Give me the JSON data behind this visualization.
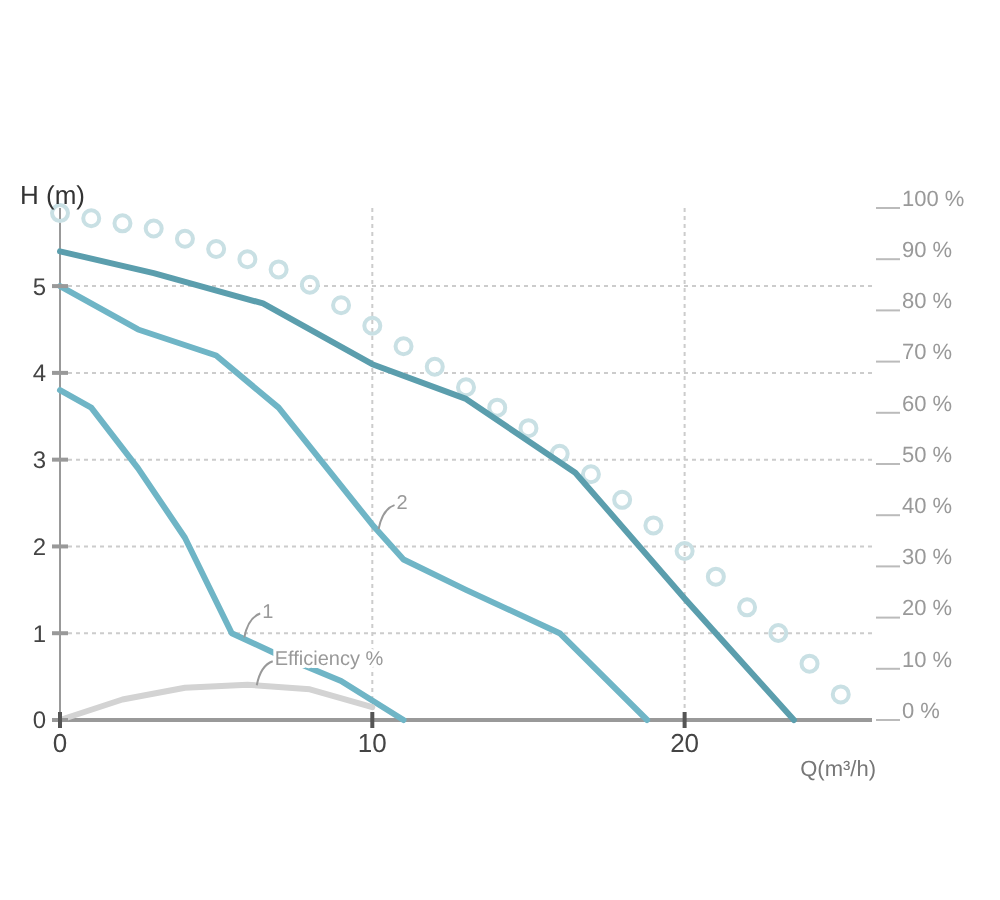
{
  "chart_data": {
    "type": "line",
    "ylabel": "H (m)",
    "xlabel": "Q(m³/h)",
    "xlim": [
      0,
      26
    ],
    "xticks": [
      0,
      10,
      20
    ],
    "ylim": [
      0,
      5.9
    ],
    "yticks": [
      0,
      1,
      2,
      3,
      4,
      5
    ],
    "y2lim": [
      0,
      100
    ],
    "y2ticks": [
      {
        "value": 0,
        "label": "0 %"
      },
      {
        "value": 10,
        "label": "10 %"
      },
      {
        "value": 20,
        "label": "20 %"
      },
      {
        "value": 30,
        "label": "30 %"
      },
      {
        "value": 40,
        "label": "40 %"
      },
      {
        "value": 50,
        "label": "50 %"
      },
      {
        "value": 60,
        "label": "60 %"
      },
      {
        "value": 70,
        "label": "70 %"
      },
      {
        "value": 80,
        "label": "80 %"
      },
      {
        "value": 90,
        "label": "90 %"
      },
      {
        "value": 100,
        "label": "100 %"
      }
    ],
    "grid": true,
    "series": [
      {
        "type": "scatter",
        "axis": "y2",
        "marker": "circle",
        "color": "#c9e0e4",
        "x": [
          0,
          1,
          2,
          3,
          4,
          5,
          6,
          7,
          8,
          9,
          10,
          11,
          12,
          13,
          14,
          15,
          16,
          17,
          18,
          19,
          20,
          21,
          22,
          23,
          24,
          25
        ],
        "values": [
          99,
          98,
          97,
          96,
          94,
          92,
          90,
          88,
          85,
          81,
          77,
          73,
          69,
          65,
          61,
          57,
          52,
          48,
          43,
          38,
          33,
          28,
          22,
          17,
          11,
          5
        ]
      },
      {
        "color": "#5b9ead",
        "x": [
          0,
          3,
          6.5,
          10,
          13,
          16.5,
          20,
          23.5
        ],
        "values": [
          5.4,
          5.15,
          4.8,
          4.1,
          3.7,
          2.85,
          1.4,
          0
        ]
      },
      {
        "color": "#6fb5c6",
        "x": [
          0,
          2.5,
          5,
          7,
          10,
          11,
          13,
          16,
          18.8
        ],
        "values": [
          5.0,
          4.5,
          4.2,
          3.6,
          2.25,
          1.85,
          1.5,
          1.0,
          0
        ]
      },
      {
        "color": "#6fb5c6",
        "x": [
          0,
          1,
          2.5,
          4,
          5.5,
          7,
          9,
          11
        ],
        "values": [
          3.8,
          3.6,
          2.9,
          2.1,
          1.0,
          0.75,
          0.45,
          0
        ]
      },
      {
        "color": "#d3d3d3",
        "axis": "y2",
        "x": [
          0,
          2,
          4,
          6,
          8,
          10
        ],
        "values": [
          0,
          4,
          6.3,
          6.9,
          6,
          2.5
        ]
      }
    ],
    "annotations": [
      {
        "text": "1",
        "x": 5.9,
        "y": 0.95
      },
      {
        "text": "2",
        "x": 10.2,
        "y": 2.2
      },
      {
        "text": "Efficiency %",
        "x": 6.3,
        "y": 0.4
      }
    ]
  }
}
